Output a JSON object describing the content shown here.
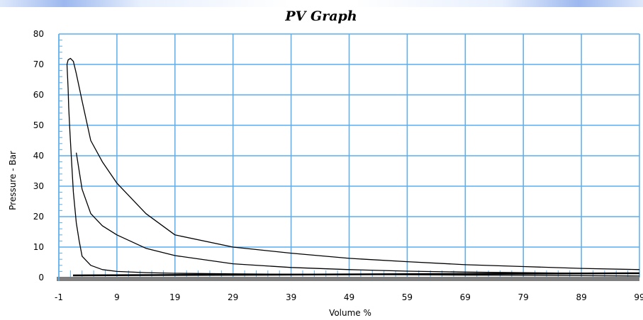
{
  "chart_data": {
    "type": "line",
    "title": "PV Graph",
    "xlabel": "Volume  %",
    "ylabel": "Pressure - Bar",
    "xlim": [
      -1,
      99
    ],
    "ylim": [
      0,
      80
    ],
    "x_ticks": [
      "-1",
      "9",
      "19",
      "29",
      "39",
      "49",
      "59",
      "69",
      "79",
      "89",
      "99"
    ],
    "y_ticks": [
      "0",
      "10",
      "20",
      "30",
      "40",
      "50",
      "60",
      "70",
      "80"
    ],
    "grid": true,
    "colors": {
      "grid": "#5aaef0",
      "line": "#000000",
      "baseline": "#7f7f7f"
    },
    "series": [
      {
        "x": [
          99,
          89,
          79,
          69,
          59,
          49,
          39,
          29,
          19,
          14,
          9,
          6.5,
          4.5,
          3,
          2.5,
          2,
          1.5,
          1.2,
          0.9,
          0.7,
          0.6,
          0.4,
          0.6,
          1,
          1.5,
          2,
          3,
          4.5,
          6.5,
          9,
          14,
          19,
          29,
          39,
          49,
          59,
          69,
          79,
          89,
          99
        ],
        "y": [
          0.5,
          0.6,
          0.7,
          0.8,
          0.9,
          1.0,
          1.1,
          1.2,
          1.4,
          1.6,
          2.0,
          2.6,
          4,
          7,
          12,
          18,
          28,
          38,
          48,
          56,
          62,
          70,
          71.5,
          72,
          71,
          67,
          58,
          45,
          38,
          31,
          21,
          14,
          10,
          8,
          6.3,
          5.2,
          4.2,
          3.6,
          3.0,
          2.6
        ]
      },
      {
        "x": [
          2,
          3,
          4.5,
          6.5,
          9,
          14,
          19,
          29,
          39,
          49,
          59,
          69,
          79,
          89,
          99
        ],
        "y": [
          41,
          29,
          21,
          17,
          14,
          9.6,
          7.2,
          4.5,
          3.3,
          2.6,
          2.1,
          1.8,
          1.6,
          1.4,
          1.3
        ]
      }
    ]
  }
}
